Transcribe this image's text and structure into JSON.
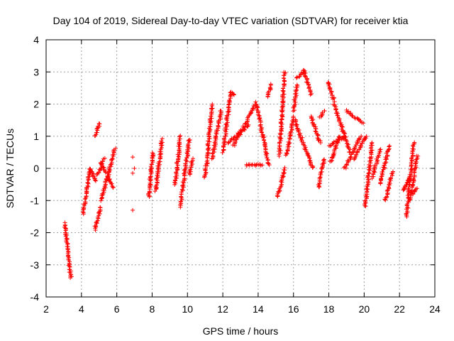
{
  "chart_data": {
    "type": "scatter",
    "title": "Day 104 of 2019, Sidereal Day-to-day VTEC variation (SDTVAR) for receiver ktia",
    "xlabel": "GPS time / hours",
    "ylabel": "SDTVAR / TECUs",
    "xlim": [
      2,
      24
    ],
    "ylim": [
      -4,
      4
    ],
    "x_ticks": [
      "2",
      "4",
      "6",
      "8",
      "10",
      "12",
      "14",
      "16",
      "18",
      "20",
      "22",
      "24"
    ],
    "y_ticks": [
      "-4",
      "-3",
      "-2",
      "-1",
      "0",
      "1",
      "2",
      "3",
      "4"
    ],
    "grid": true,
    "marker": "plus",
    "series_color": "#ff0000",
    "series": [
      {
        "name": "SDTVAR",
        "segments": [
          [
            3.05,
            -1.7,
            3.4,
            -3.4
          ],
          [
            4.1,
            -1.4,
            4.5,
            0.0
          ],
          [
            4.5,
            0.0,
            4.8,
            -0.4
          ],
          [
            4.75,
            -1.9,
            5.1,
            -1.2
          ],
          [
            4.75,
            1.0,
            5.05,
            1.4
          ],
          [
            5.1,
            -1.0,
            5.9,
            0.6
          ],
          [
            5.1,
            0.2,
            5.8,
            -0.6
          ],
          [
            4.9,
            -0.2,
            5.3,
            0.3
          ],
          [
            7.8,
            -0.9,
            8.05,
            0.5
          ],
          [
            8.2,
            -0.7,
            8.55,
            0.9
          ],
          [
            9.3,
            -0.5,
            9.6,
            1.0
          ],
          [
            9.6,
            -1.2,
            10.1,
            0.9
          ],
          [
            10.1,
            -0.2,
            10.3,
            0.3
          ],
          [
            11.0,
            -0.3,
            11.4,
            2.0
          ],
          [
            11.4,
            0.3,
            11.9,
            1.8
          ],
          [
            12.0,
            0.5,
            12.45,
            2.35
          ],
          [
            12.45,
            2.35,
            12.65,
            2.3
          ],
          [
            12.3,
            0.8,
            13.5,
            1.35
          ],
          [
            12.6,
            0.7,
            13.9,
            2.05
          ],
          [
            13.3,
            0.1,
            14.2,
            0.1
          ],
          [
            13.9,
            2.0,
            14.6,
            0.1
          ],
          [
            14.5,
            2.2,
            14.75,
            2.6
          ],
          [
            15.2,
            0.4,
            15.5,
            3.0
          ],
          [
            15.1,
            -0.9,
            15.5,
            0.0
          ],
          [
            15.6,
            0.4,
            16.0,
            1.5
          ],
          [
            16.0,
            1.8,
            16.2,
            2.6
          ],
          [
            16.2,
            2.8,
            16.6,
            3.05
          ],
          [
            16.6,
            3.05,
            17.0,
            2.3
          ],
          [
            16.0,
            1.6,
            17.1,
            0.0
          ],
          [
            17.0,
            1.6,
            17.5,
            0.8
          ],
          [
            17.4,
            -0.6,
            17.75,
            0.3
          ],
          [
            17.5,
            1.6,
            17.75,
            1.8
          ],
          [
            17.95,
            2.7,
            18.3,
            2.1
          ],
          [
            18.3,
            2.0,
            19.2,
            0.5
          ],
          [
            18.0,
            0.7,
            19.0,
            1.0
          ],
          [
            18.1,
            0.2,
            18.6,
            1.0
          ],
          [
            18.9,
            0.0,
            19.8,
            1.0
          ],
          [
            19.0,
            1.8,
            19.9,
            1.4
          ],
          [
            19.4,
            0.3,
            20.1,
            1.0
          ],
          [
            20.05,
            -1.2,
            20.45,
            0.8
          ],
          [
            20.45,
            -0.3,
            20.9,
            0.6
          ],
          [
            20.9,
            -0.5,
            21.4,
            0.7
          ],
          [
            21.2,
            -1.0,
            21.6,
            -0.1
          ],
          [
            22.2,
            -0.7,
            22.55,
            -0.3
          ],
          [
            22.4,
            -1.5,
            22.8,
            0.8
          ],
          [
            22.6,
            -1.0,
            23.0,
            0.4
          ],
          [
            22.75,
            -0.8,
            23.0,
            -0.6
          ]
        ],
        "isolated_points": [
          [
            6.9,
            0.35
          ],
          [
            6.9,
            -0.15
          ],
          [
            6.9,
            -1.3
          ],
          [
            7.0,
            0.0
          ]
        ]
      }
    ]
  }
}
